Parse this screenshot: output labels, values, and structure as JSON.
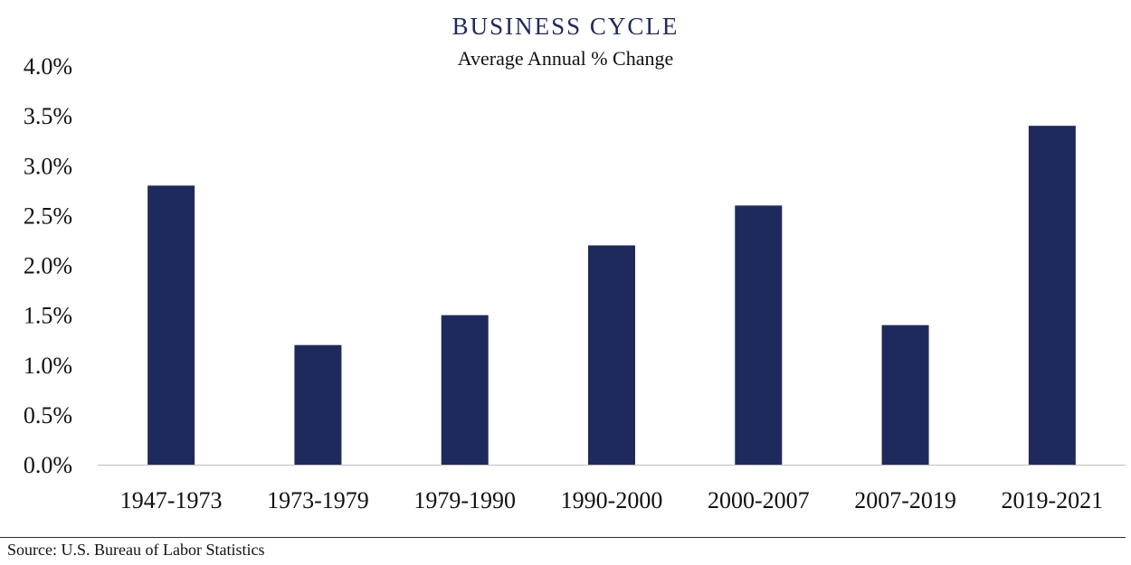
{
  "chart_data": {
    "type": "bar",
    "title": "BUSINESS CYCLE",
    "subtitle": "Average Annual % Change",
    "categories": [
      "1947-1973",
      "1973-1979",
      "1979-1990",
      "1990-2000",
      "2000-2007",
      "2007-2019",
      "2019-2021"
    ],
    "values": [
      2.8,
      1.2,
      1.5,
      2.2,
      2.6,
      1.4,
      3.4
    ],
    "ylim": [
      0,
      4.0
    ],
    "yticks": [
      "0.0%",
      "0.5%",
      "1.0%",
      "1.5%",
      "2.0%",
      "2.5%",
      "3.0%",
      "3.5%",
      "4.0%"
    ],
    "ytick_values": [
      0,
      0.5,
      1.0,
      1.5,
      2.0,
      2.5,
      3.0,
      3.5,
      4.0
    ],
    "grid": false,
    "bar_color": "#1f2a5c"
  },
  "source": "Source: U.S. Bureau of Labor Statistics"
}
